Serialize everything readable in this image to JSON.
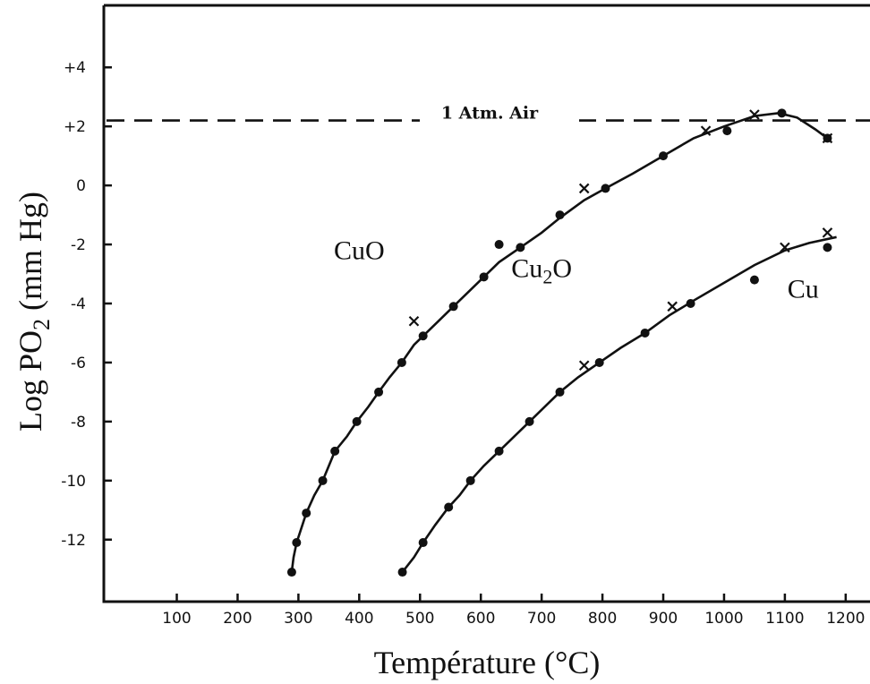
{
  "chart_data": {
    "type": "line",
    "title": "",
    "xlabel": "Température (°C)",
    "ylabel_parts": [
      "Log PO",
      "2",
      " (mm Hg)"
    ],
    "xlim": [
      -20,
      1240
    ],
    "ylim": [
      -14.1,
      6.1
    ],
    "x_ticks": [
      100,
      200,
      300,
      400,
      500,
      600,
      700,
      800,
      900,
      1000,
      1100,
      1200
    ],
    "y_ticks": [
      4,
      2,
      0,
      -2,
      -4,
      -6,
      -8,
      -10,
      -12
    ],
    "y_tick_labels": [
      "+4",
      "+2",
      "0",
      "-2",
      "-4",
      "-6",
      "-8",
      "-10",
      "-12"
    ],
    "grid": false,
    "reference_line": {
      "label": "1 Atm. Air",
      "y": 2.2
    },
    "region_labels": [
      {
        "parts": [
          "CuO"
        ],
        "x": 400,
        "y": -2.5
      },
      {
        "parts": [
          "Cu",
          "2",
          "O"
        ],
        "x": 700,
        "y": -3.1
      },
      {
        "parts": [
          "Cu"
        ],
        "x": 1130,
        "y": -3.8
      }
    ],
    "series": [
      {
        "curve": [
          [
            289,
            -13.1
          ],
          [
            292,
            -12.6
          ],
          [
            297,
            -12.1
          ],
          [
            305,
            -11.6
          ],
          [
            313,
            -11.1
          ],
          [
            326,
            -10.5
          ],
          [
            340,
            -10.0
          ],
          [
            360,
            -9.0
          ],
          [
            380,
            -8.5
          ],
          [
            396,
            -8.0
          ],
          [
            415,
            -7.5
          ],
          [
            432,
            -7.0
          ],
          [
            450,
            -6.5
          ],
          [
            470,
            -6.0
          ],
          [
            490,
            -5.4
          ],
          [
            505,
            -5.1
          ],
          [
            530,
            -4.6
          ],
          [
            555,
            -4.1
          ],
          [
            580,
            -3.6
          ],
          [
            605,
            -3.1
          ],
          [
            630,
            -2.6
          ],
          [
            665,
            -2.1
          ],
          [
            700,
            -1.6
          ],
          [
            730,
            -1.1
          ],
          [
            770,
            -0.5
          ],
          [
            805,
            -0.1
          ],
          [
            850,
            0.4
          ],
          [
            900,
            1.0
          ],
          [
            950,
            1.6
          ],
          [
            1000,
            2.0
          ],
          [
            1050,
            2.35
          ],
          [
            1090,
            2.45
          ],
          [
            1120,
            2.3
          ],
          [
            1150,
            1.9
          ],
          [
            1170,
            1.6
          ]
        ],
        "dots": [
          [
            289,
            -13.1
          ],
          [
            297,
            -12.1
          ],
          [
            313,
            -11.1
          ],
          [
            340,
            -10.0
          ],
          [
            360,
            -9.0
          ],
          [
            396,
            -8.0
          ],
          [
            432,
            -7.0
          ],
          [
            470,
            -6.0
          ],
          [
            505,
            -5.1
          ],
          [
            555,
            -4.1
          ],
          [
            605,
            -3.1
          ],
          [
            630,
            -2.0
          ],
          [
            665,
            -2.1
          ],
          [
            730,
            -1.0
          ],
          [
            805,
            -0.1
          ],
          [
            900,
            1.0
          ],
          [
            1005,
            1.85
          ],
          [
            1095,
            2.45
          ],
          [
            1170,
            1.6
          ]
        ],
        "crosses": [
          [
            490,
            -4.6
          ],
          [
            770,
            -0.1
          ],
          [
            970,
            1.85
          ],
          [
            1050,
            2.4
          ],
          [
            1170,
            1.6
          ]
        ]
      },
      {
        "curve": [
          [
            471,
            -13.1
          ],
          [
            490,
            -12.6
          ],
          [
            505,
            -12.1
          ],
          [
            525,
            -11.5
          ],
          [
            547,
            -10.9
          ],
          [
            565,
            -10.5
          ],
          [
            583,
            -10.0
          ],
          [
            605,
            -9.5
          ],
          [
            630,
            -9.0
          ],
          [
            655,
            -8.5
          ],
          [
            680,
            -8.0
          ],
          [
            705,
            -7.5
          ],
          [
            730,
            -7.0
          ],
          [
            760,
            -6.5
          ],
          [
            795,
            -6.0
          ],
          [
            830,
            -5.5
          ],
          [
            870,
            -5.0
          ],
          [
            910,
            -4.4
          ],
          [
            950,
            -3.9
          ],
          [
            1000,
            -3.3
          ],
          [
            1050,
            -2.7
          ],
          [
            1100,
            -2.2
          ],
          [
            1140,
            -1.95
          ],
          [
            1185,
            -1.75
          ]
        ],
        "dots": [
          [
            471,
            -13.1
          ],
          [
            505,
            -12.1
          ],
          [
            547,
            -10.9
          ],
          [
            583,
            -10.0
          ],
          [
            630,
            -9.0
          ],
          [
            680,
            -8.0
          ],
          [
            730,
            -7.0
          ],
          [
            795,
            -6.0
          ],
          [
            870,
            -5.0
          ],
          [
            945,
            -4.0
          ],
          [
            1050,
            -3.2
          ],
          [
            1170,
            -2.1
          ]
        ],
        "crosses": [
          [
            770,
            -6.1
          ],
          [
            915,
            -4.1
          ],
          [
            1100,
            -2.1
          ],
          [
            1170,
            -1.6
          ]
        ]
      }
    ]
  }
}
